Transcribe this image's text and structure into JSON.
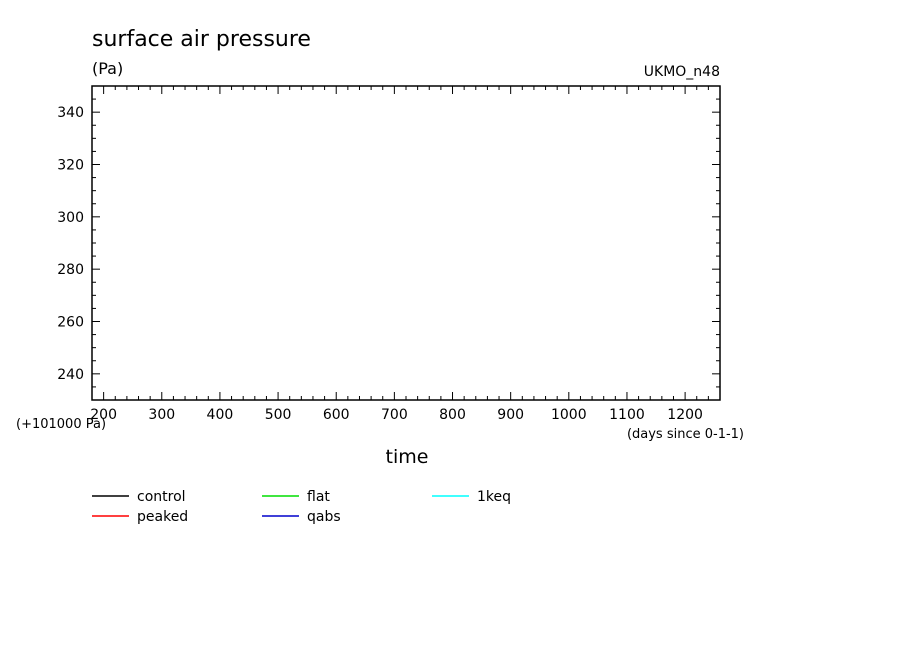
{
  "chart_data": {
    "type": "line",
    "title": "surface air pressure",
    "ylabel": "(Pa)",
    "model": "UKMO_n48",
    "xlabel": "time",
    "x_unit_note": "(days since 0-1-1)",
    "y_offset_note": "(+101000 Pa)",
    "xlim": [
      180,
      1260
    ],
    "ylim": [
      230,
      350
    ],
    "x_ticks": [
      200,
      300,
      400,
      500,
      600,
      700,
      800,
      900,
      1000,
      1100,
      1200
    ],
    "y_ticks": [
      240,
      260,
      280,
      300,
      320,
      340
    ],
    "grid": false,
    "legend_position": "bottom",
    "series": [
      {
        "name": "control",
        "color": "#000000",
        "x": [],
        "y": []
      },
      {
        "name": "peaked",
        "color": "#ff0000",
        "x": [],
        "y": []
      },
      {
        "name": "flat",
        "color": "#00dd00",
        "x": [],
        "y": []
      },
      {
        "name": "qabs",
        "color": "#0000cc",
        "x": [],
        "y": []
      },
      {
        "name": "1keq",
        "color": "#00ffff",
        "x": [],
        "y": []
      }
    ]
  }
}
